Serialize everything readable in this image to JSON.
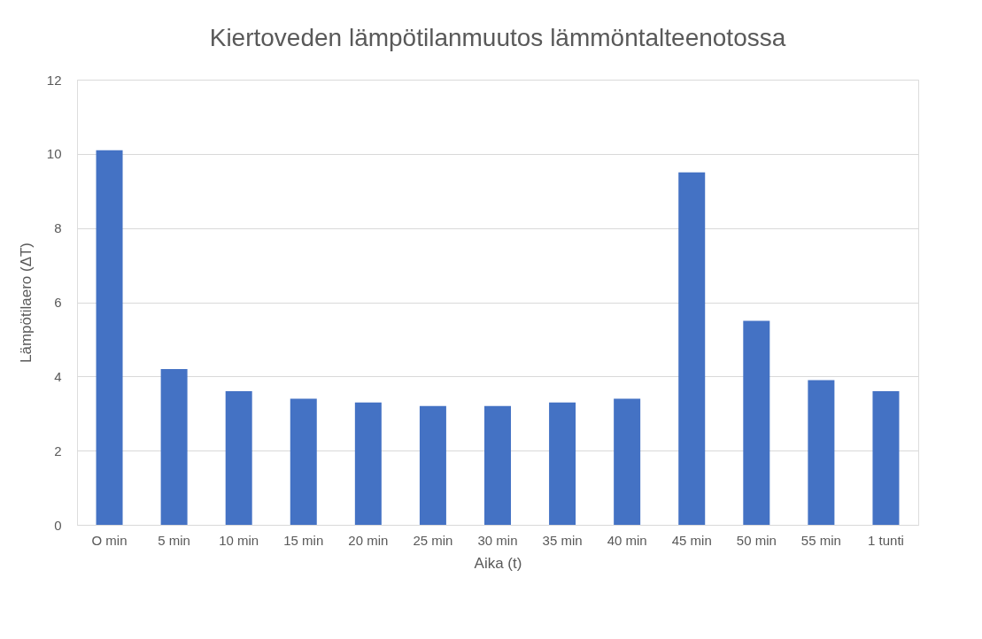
{
  "chart_data": {
    "type": "bar",
    "title": "Kiertoveden lämpötilanmuutos lämmöntalteenotossa",
    "xlabel": "Aika (t)",
    "ylabel": "Lämpötilaero (ΔT)",
    "categories": [
      "O min",
      "5 min",
      "10 min",
      "15 min",
      "20 min",
      "25 min",
      "30 min",
      "35 min",
      "40 min",
      "45 min",
      "50 min",
      "55 min",
      "1 tunti"
    ],
    "series": [
      {
        "color": "#4472c4",
        "values": [
          10.1,
          4.2,
          3.6,
          3.4,
          3.3,
          3.2,
          3.2,
          3.3,
          3.4,
          9.5,
          5.5,
          3.9,
          3.6
        ]
      }
    ],
    "ylim": [
      0,
      12
    ],
    "yticks": [
      0,
      2,
      4,
      6,
      8,
      10,
      12
    ],
    "grid": "y",
    "legend": false
  }
}
